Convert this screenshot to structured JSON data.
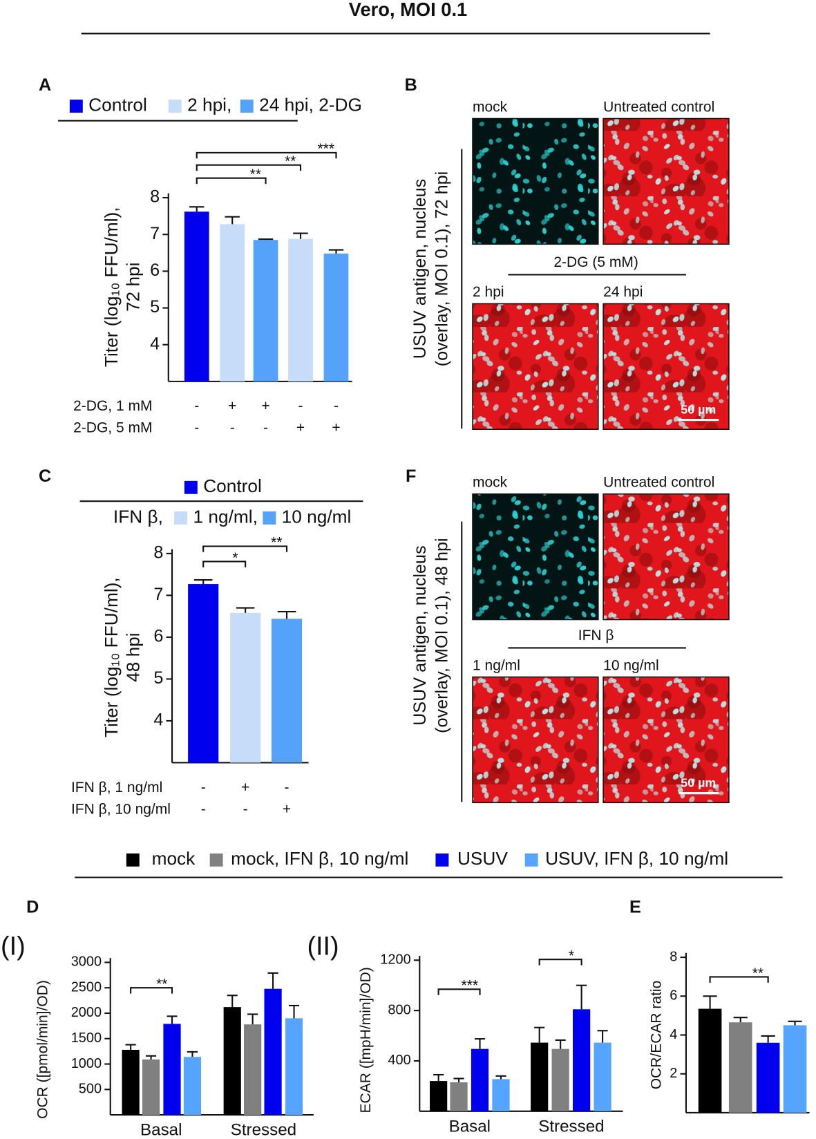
{
  "title": "Vero, MOI 0.1",
  "chart_data": [
    {
      "type": "bar",
      "letter": "A",
      "legend": [
        {
          "name": "Control"
        },
        {
          "name": "2 hpi,"
        },
        {
          "name": "24 hpi, 2-DG"
        }
      ],
      "y_label": [
        "Titer (log₁₀ FFU/ml),",
        "72 hpi"
      ],
      "categories": [
        null,
        null,
        null,
        null,
        null
      ],
      "values": [
        7.62,
        7.28,
        6.85,
        6.88,
        6.48
      ],
      "errors": [
        0.13,
        0.2,
        0.02,
        0.15,
        0.1
      ],
      "colors": [
        "#0000ee",
        "#c6dcf8",
        "#55a2fb",
        "#c6dcf8",
        "#55a2fb"
      ],
      "ylim": [
        3,
        8
      ],
      "yticks": [
        4,
        5,
        6,
        7,
        8
      ],
      "treatments": [
        {
          "label": "2-DG, 1 mM",
          "signs": [
            "-",
            "+",
            "+",
            "-",
            "-"
          ]
        },
        {
          "label": "2-DG, 5 mM",
          "signs": [
            "-",
            "-",
            "-",
            "+",
            "+"
          ]
        }
      ],
      "brackets": [
        {
          "from": 0,
          "to": 2,
          "label": "**"
        },
        {
          "from": 0,
          "to": 3,
          "label": "**"
        },
        {
          "from": 0,
          "to": 4,
          "label": "***"
        }
      ]
    },
    {
      "type": "bar",
      "letter": "C",
      "legend": [
        {
          "name": "Control"
        },
        {
          "name": "1 ng/ml,"
        },
        {
          "name": "10 ng/ml"
        }
      ],
      "legend_prefix": "IFN β,",
      "y_label": [
        "Titer (log₁₀ FFU/ml),",
        "48 hpi"
      ],
      "categories": [
        null,
        null,
        null
      ],
      "values": [
        7.27,
        6.58,
        6.44
      ],
      "errors": [
        0.1,
        0.12,
        0.17
      ],
      "colors": [
        "#0000ee",
        "#c6dcf8",
        "#55a2fb"
      ],
      "ylim": [
        3,
        8
      ],
      "yticks": [
        4,
        5,
        6,
        7,
        8
      ],
      "treatments": [
        {
          "label": "IFN β, 1 ng/ml",
          "signs": [
            "-",
            "+",
            "-"
          ]
        },
        {
          "label": "IFN β, 10 ng/ml",
          "signs": [
            "-",
            "-",
            "+"
          ]
        }
      ],
      "brackets": [
        {
          "from": 0,
          "to": 1,
          "label": "*"
        },
        {
          "from": 0,
          "to": 2,
          "label": "**"
        }
      ]
    },
    {
      "type": "grouped_bar",
      "letter": "D",
      "sublabel": "(I)",
      "y_label": "OCR ([pmol/min]/OD)",
      "categories": [
        "Basal",
        "Stressed"
      ],
      "series": [
        {
          "name": "mock",
          "color": "#000000",
          "values": [
            1280,
            2120
          ],
          "errors": [
            100,
            230
          ]
        },
        {
          "name": "mock, IFN β, 10 ng/ml",
          "color": "#808080",
          "values": [
            1090,
            1780
          ],
          "errors": [
            70,
            200
          ]
        },
        {
          "name": "USUV",
          "color": "#0000ee",
          "values": [
            1790,
            2480
          ],
          "errors": [
            150,
            310
          ]
        },
        {
          "name": "USUV, IFN β, 10 ng/ml",
          "color": "#55a5ff",
          "values": [
            1140,
            1900
          ],
          "errors": [
            100,
            250
          ]
        }
      ],
      "ylim": [
        0,
        3000
      ],
      "yticks": [
        500,
        1000,
        1500,
        2000,
        2500,
        3000
      ],
      "brackets": [
        {
          "group": 0,
          "from": 0,
          "to": 2,
          "label": "**"
        }
      ]
    },
    {
      "type": "grouped_bar",
      "sublabel": "(II)",
      "y_label": "ECAR ([mpH/min]/OD)",
      "categories": [
        "Basal",
        "Stressed"
      ],
      "series": [
        {
          "values": [
            240,
            545
          ],
          "errors": [
            50,
            120
          ]
        },
        {
          "values": [
            230,
            495
          ],
          "errors": [
            30,
            70
          ]
        },
        {
          "values": [
            495,
            810
          ],
          "errors": [
            80,
            190
          ]
        },
        {
          "values": [
            255,
            545
          ],
          "errors": [
            25,
            95
          ]
        }
      ],
      "ylim": [
        0,
        1200
      ],
      "yticks": [
        400,
        800,
        1200
      ],
      "brackets": [
        {
          "group": 0,
          "from": 0,
          "to": 2,
          "label": "***"
        },
        {
          "group": 1,
          "from": 0,
          "to": 2,
          "label": "*"
        }
      ]
    },
    {
      "type": "bar",
      "letter": "E",
      "y_label": "OCR/ECAR ratio",
      "categories": [
        null,
        null,
        null,
        null
      ],
      "values": [
        5.35,
        4.65,
        3.6,
        4.5
      ],
      "errors": [
        0.65,
        0.25,
        0.35,
        0.2
      ],
      "ylim": [
        0,
        8
      ],
      "yticks": [
        2,
        4,
        6,
        8
      ],
      "brackets": [
        {
          "from": 0,
          "to": 2,
          "label": "**"
        }
      ]
    }
  ],
  "micrographs": [
    {
      "letter": "B",
      "top_left": "mock",
      "top_right": "Untreated control",
      "treatment": "2-DG (5 mM)",
      "bottom_left": "2 hpi",
      "bottom_right": "24 hpi",
      "side_label": [
        "USUV antigen, nucleus",
        "(overlay, MOI 0.1), 72 hpi"
      ],
      "scale_bar": "50 µm"
    },
    {
      "letter": "F",
      "top_left": "mock",
      "top_right": "Untreated control",
      "treatment": "IFN β",
      "bottom_left": "1 ng/ml",
      "bottom_right": "10 ng/ml",
      "side_label": [
        "USUV antigen, nucleus",
        "(overlay, MOI 0.1), 48 hpi"
      ],
      "scale_bar": "50 µm"
    }
  ]
}
